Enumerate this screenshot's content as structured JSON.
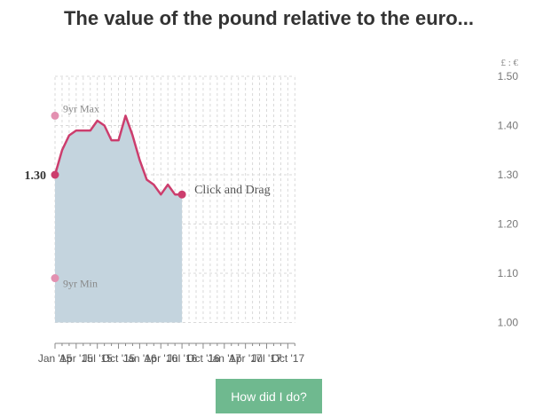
{
  "title": "The value of the pound relative to the euro...",
  "button_label": "How did I do?",
  "colors": {
    "line": "#cc3d6d",
    "area": "#c4d4de",
    "minmax": "#e391b1",
    "button": "#6fb98f"
  },
  "chart_data": {
    "type": "line",
    "title": "The value of the pound relative to the euro...",
    "ylabel": "£ : €",
    "xlabel": "",
    "ylim": [
      1.0,
      1.5
    ],
    "yticks": [
      1.0,
      1.1,
      1.2,
      1.3,
      1.4,
      1.5
    ],
    "ytick_labels": [
      "1.00",
      "1.10",
      "1.20",
      "1.30",
      "1.40",
      "1.50"
    ],
    "x_ticks": [
      "Jan '15",
      "Apr '15",
      "Jul '15",
      "Oct '15",
      "Jan '16",
      "Apr '16",
      "Jul '16",
      "Oct '16",
      "Jan '17",
      "Apr '17",
      "Jul '17",
      "Oct '17"
    ],
    "x_range": [
      "2015-01",
      "2017-11"
    ],
    "grid": true,
    "series": [
      {
        "x": [
          "2015-01",
          "2015-02",
          "2015-03",
          "2015-04",
          "2015-05",
          "2015-06",
          "2015-07",
          "2015-08",
          "2015-09",
          "2015-10",
          "2015-11",
          "2015-12",
          "2016-01",
          "2016-02",
          "2016-03",
          "2016-04",
          "2016-05",
          "2016-06",
          "2016-07"
        ],
        "values": [
          1.3,
          1.35,
          1.38,
          1.39,
          1.39,
          1.39,
          1.41,
          1.4,
          1.37,
          1.37,
          1.42,
          1.38,
          1.33,
          1.29,
          1.28,
          1.26,
          1.28,
          1.26,
          1.26
        ]
      }
    ],
    "start_label": "1.30",
    "max_label": "9yr Max",
    "max_value": 1.42,
    "min_label": "9yr Min",
    "min_value": 1.09,
    "drag_label": "Click and Drag"
  }
}
